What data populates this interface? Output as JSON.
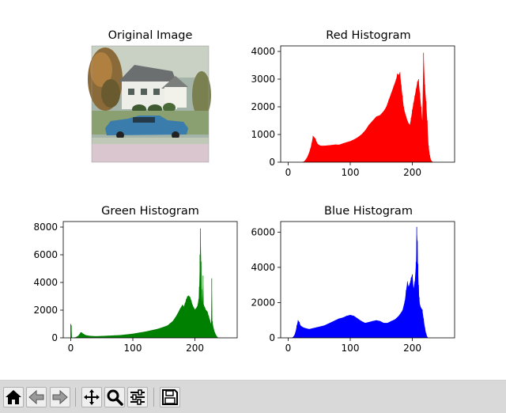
{
  "figure": {
    "panels": [
      {
        "id": "image",
        "title": "Original Image"
      },
      {
        "id": "red",
        "title": "Red Histogram"
      },
      {
        "id": "green",
        "title": "Green Histogram"
      },
      {
        "id": "blue",
        "title": "Blue Histogram"
      }
    ]
  },
  "chart_data": [
    {
      "type": "bar",
      "title": "Red Histogram",
      "color": "#ff0000",
      "xlabel": "",
      "ylabel": "",
      "xlim": [
        -12,
        268
      ],
      "ylim": [
        0,
        4200
      ],
      "xticks": [
        0,
        100,
        200
      ],
      "yticks": [
        0,
        1000,
        2000,
        3000,
        4000
      ],
      "x": [
        22,
        26,
        30,
        33,
        36,
        38,
        40,
        42,
        44,
        46,
        48,
        52,
        56,
        60,
        64,
        70,
        76,
        82,
        88,
        94,
        100,
        106,
        112,
        118,
        124,
        130,
        136,
        142,
        148,
        154,
        158,
        162,
        166,
        170,
        174,
        176,
        178,
        180,
        182,
        184,
        186,
        188,
        190,
        192,
        194,
        196,
        198,
        200,
        202,
        204,
        206,
        208,
        210,
        212,
        214,
        216,
        218,
        220,
        222,
        224,
        226,
        228,
        230,
        232,
        234
      ],
      "values": [
        0,
        30,
        150,
        300,
        500,
        700,
        950,
        900,
        850,
        720,
        650,
        600,
        590,
        600,
        610,
        620,
        640,
        630,
        680,
        720,
        760,
        820,
        900,
        1000,
        1150,
        1350,
        1500,
        1650,
        1700,
        1850,
        2000,
        2250,
        2500,
        2750,
        3000,
        3200,
        3150,
        3250,
        2800,
        2400,
        2000,
        1800,
        1650,
        1500,
        1400,
        1350,
        1600,
        1900,
        2150,
        2400,
        2650,
        2900,
        3000,
        2500,
        2000,
        1500,
        3950,
        2800,
        2200,
        1500,
        600,
        250,
        80,
        20,
        0
      ]
    },
    {
      "type": "bar",
      "title": "Green Histogram",
      "color": "#008000",
      "xlabel": "",
      "ylabel": "",
      "xlim": [
        -12,
        268
      ],
      "ylim": [
        0,
        8400
      ],
      "xticks": [
        0,
        100,
        200
      ],
      "yticks": [
        0,
        2000,
        4000,
        6000,
        8000
      ],
      "x": [
        0,
        1,
        2,
        4,
        8,
        12,
        14,
        16,
        18,
        20,
        24,
        30,
        40,
        50,
        60,
        70,
        80,
        90,
        100,
        110,
        120,
        130,
        140,
        150,
        156,
        160,
        164,
        168,
        172,
        176,
        180,
        182,
        184,
        186,
        188,
        190,
        192,
        194,
        196,
        198,
        200,
        202,
        204,
        206,
        207,
        208,
        209,
        210,
        211,
        212,
        213,
        214,
        216,
        218,
        220,
        222,
        224,
        226,
        227,
        228,
        230,
        232,
        234,
        236,
        238
      ],
      "values": [
        1000,
        900,
        0,
        20,
        40,
        150,
        250,
        400,
        380,
        300,
        200,
        150,
        120,
        140,
        160,
        180,
        200,
        250,
        300,
        380,
        450,
        550,
        650,
        800,
        900,
        1050,
        1200,
        1450,
        1750,
        2100,
        2400,
        2250,
        2500,
        2800,
        3000,
        3050,
        2950,
        2700,
        2400,
        2200,
        2050,
        2150,
        2300,
        2800,
        3700,
        6000,
        7900,
        5500,
        3500,
        2500,
        4500,
        2400,
        2200,
        2000,
        1900,
        1600,
        1300,
        1000,
        4300,
        1200,
        700,
        400,
        200,
        60,
        0
      ]
    },
    {
      "type": "bar",
      "title": "Blue Histogram",
      "color": "#0000ff",
      "xlabel": "",
      "ylabel": "",
      "xlim": [
        -12,
        268
      ],
      "ylim": [
        0,
        6600
      ],
      "xticks": [
        0,
        100,
        200
      ],
      "yticks": [
        0,
        2000,
        4000,
        6000
      ],
      "x": [
        6,
        8,
        10,
        12,
        14,
        16,
        18,
        20,
        24,
        28,
        34,
        40,
        46,
        52,
        58,
        64,
        70,
        76,
        82,
        88,
        94,
        100,
        106,
        112,
        118,
        124,
        130,
        136,
        142,
        148,
        154,
        160,
        166,
        172,
        178,
        184,
        188,
        190,
        192,
        194,
        196,
        198,
        200,
        202,
        204,
        206,
        207,
        208,
        209,
        210,
        211,
        212,
        214,
        216,
        218,
        220,
        222,
        224,
        226
      ],
      "values": [
        0,
        50,
        150,
        350,
        700,
        1000,
        900,
        700,
        600,
        550,
        500,
        550,
        600,
        650,
        700,
        800,
        900,
        1000,
        1100,
        1150,
        1250,
        1300,
        1250,
        1100,
        950,
        850,
        900,
        950,
        1000,
        950,
        850,
        850,
        950,
        1050,
        1250,
        1550,
        2100,
        2700,
        3200,
        2900,
        3100,
        3400,
        3600,
        2800,
        3200,
        4300,
        6300,
        5500,
        4200,
        3000,
        2300,
        1900,
        1700,
        1600,
        1100,
        600,
        250,
        60,
        0
      ]
    }
  ],
  "toolbar": {
    "icons": [
      "home-icon",
      "back-arrow-icon",
      "forward-arrow-icon",
      "pan-icon",
      "zoom-icon",
      "configure-subplots-icon",
      "save-icon"
    ]
  }
}
